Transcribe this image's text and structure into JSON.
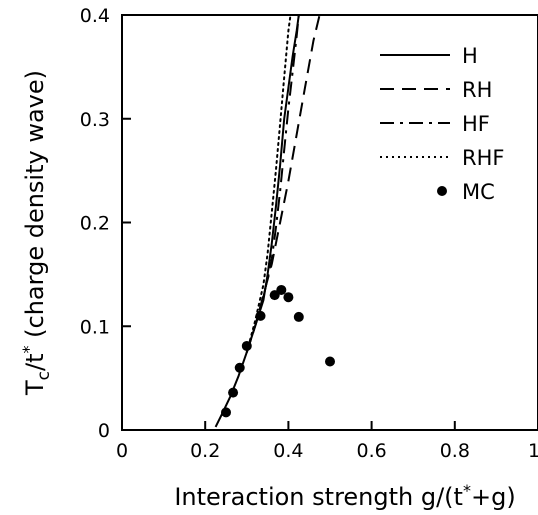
{
  "chart_data": {
    "type": "line",
    "title": "",
    "xlabel": "Interaction strength g/(t*+g)",
    "ylabel": "Tc/t* (charge density wave)",
    "xlabel_parts": {
      "main": "Interaction strength g/(t",
      "sup": "*",
      "tail": "+g)"
    },
    "ylabel_parts": {
      "T": "T",
      "sub": "c",
      "mid": "/t",
      "sup": "*",
      "tail": " (charge density wave)"
    },
    "xlim": [
      0,
      1
    ],
    "ylim": [
      0,
      0.4
    ],
    "xticks": [
      0,
      0.2,
      0.4,
      0.6,
      0.8,
      1
    ],
    "xtick_labels": [
      "0",
      "0.2",
      "0.4",
      "0.6",
      "0.8",
      "1"
    ],
    "yticks": [
      0,
      0.1,
      0.2,
      0.3,
      0.4
    ],
    "ytick_labels": [
      "0",
      "0.1",
      "0.2",
      "0.3",
      "0.4"
    ],
    "grid": false,
    "legend_position": "top-right",
    "series": [
      {
        "name": "H",
        "style": "solid",
        "x": [
          0.225,
          0.24,
          0.26,
          0.28,
          0.3,
          0.32,
          0.34,
          0.35,
          0.36,
          0.37,
          0.38,
          0.39,
          0.4,
          0.41,
          0.42,
          0.425
        ],
        "y": [
          0.003,
          0.015,
          0.032,
          0.052,
          0.075,
          0.1,
          0.125,
          0.15,
          0.18,
          0.215,
          0.255,
          0.3,
          0.33,
          0.36,
          0.385,
          0.4
        ]
      },
      {
        "name": "RH",
        "style": "dashed",
        "x": [
          0.3,
          0.32,
          0.34,
          0.36,
          0.38,
          0.4,
          0.42,
          0.44,
          0.46,
          0.475
        ],
        "y": [
          0.075,
          0.1,
          0.13,
          0.16,
          0.2,
          0.24,
          0.285,
          0.33,
          0.375,
          0.4
        ]
      },
      {
        "name": "HF",
        "style": "dashdot",
        "x": [
          0.3,
          0.32,
          0.34,
          0.36,
          0.37,
          0.38,
          0.39,
          0.4,
          0.41,
          0.42,
          0.425
        ],
        "y": [
          0.075,
          0.1,
          0.128,
          0.165,
          0.195,
          0.23,
          0.27,
          0.31,
          0.345,
          0.38,
          0.4
        ]
      },
      {
        "name": "RHF",
        "style": "dotted",
        "x": [
          0.3,
          0.32,
          0.34,
          0.35,
          0.36,
          0.37,
          0.38,
          0.39,
          0.4,
          0.405
        ],
        "y": [
          0.075,
          0.105,
          0.14,
          0.17,
          0.21,
          0.25,
          0.295,
          0.34,
          0.385,
          0.4
        ]
      },
      {
        "name": "MC",
        "style": "markers",
        "x": [
          0.25,
          0.267,
          0.283,
          0.3,
          0.333,
          0.367,
          0.383,
          0.4,
          0.425,
          0.5
        ],
        "y": [
          0.017,
          0.036,
          0.06,
          0.081,
          0.11,
          0.13,
          0.135,
          0.128,
          0.109,
          0.066
        ]
      }
    ]
  }
}
